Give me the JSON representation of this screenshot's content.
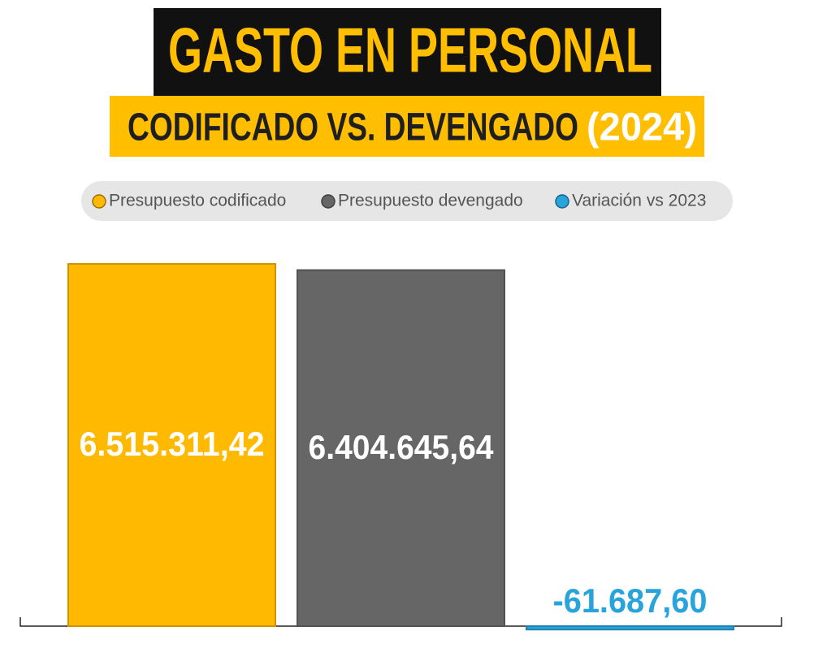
{
  "chart_data": {
    "type": "bar",
    "title": "GASTO EN PERSONAL",
    "subtitle": "CODIFICADO VS. DEVENGADO",
    "subtitle_year": "(2024)",
    "categories": [
      null
    ],
    "series": [
      {
        "name": "Presupuesto codificado",
        "color": "#ffb900",
        "values": [
          6515311.42
        ],
        "value_labels": [
          "6.515.311,42"
        ]
      },
      {
        "name": "Presupuesto devengado",
        "color": "#666666",
        "values": [
          6404645.64
        ],
        "value_labels": [
          "6.404.645,64"
        ]
      },
      {
        "name": "Variación vs 2023",
        "color": "#29a3dc",
        "values": [
          -61687.6
        ],
        "value_labels": [
          "-61.687,60"
        ]
      }
    ]
  }
}
